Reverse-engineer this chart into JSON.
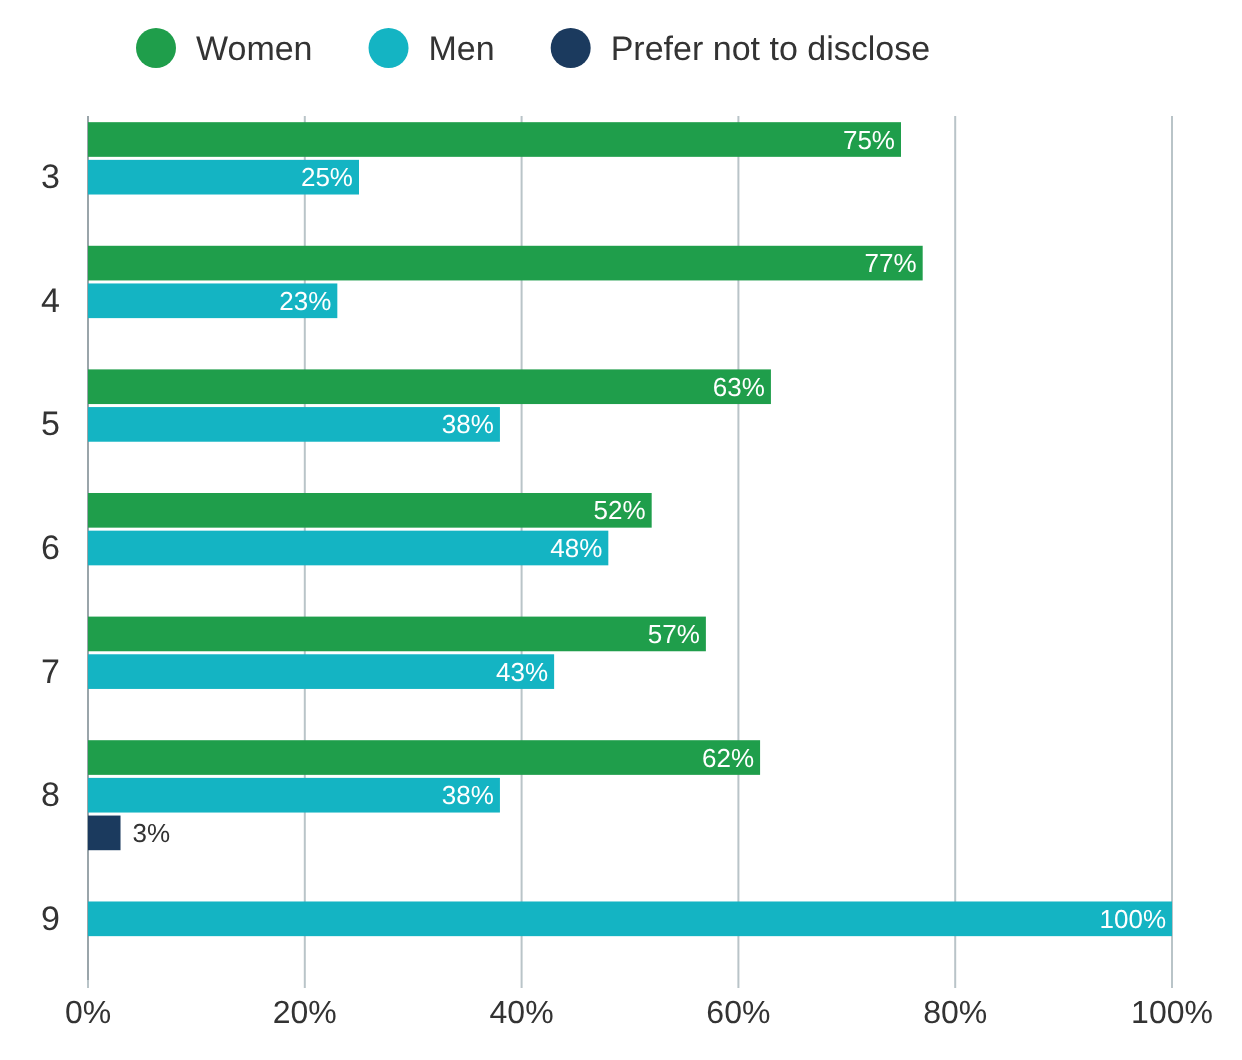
{
  "chart_data": {
    "type": "bar",
    "orientation": "horizontal",
    "categories": [
      "3",
      "4",
      "5",
      "6",
      "7",
      "8",
      "9"
    ],
    "series": [
      {
        "name": "Women",
        "color": "#1f9e4b",
        "values": [
          75,
          77,
          63,
          52,
          57,
          62,
          null
        ],
        "value_labels": [
          "75%",
          "77%",
          "63%",
          "52%",
          "57%",
          "62%",
          null
        ]
      },
      {
        "name": "Men",
        "color": "#14b4c3",
        "values": [
          25,
          23,
          38,
          48,
          43,
          38,
          100
        ],
        "value_labels": [
          "25%",
          "23%",
          "38%",
          "48%",
          "43%",
          "38%",
          "100%"
        ]
      },
      {
        "name": "Prefer not to disclose",
        "color": "#1b3a5e",
        "values": [
          null,
          null,
          null,
          null,
          null,
          3,
          null
        ],
        "value_labels": [
          null,
          null,
          null,
          null,
          null,
          "3%",
          null
        ]
      }
    ],
    "xlim": [
      0,
      100
    ],
    "xticks": [
      {
        "value": 0,
        "label": "0%"
      },
      {
        "value": 20,
        "label": "20%"
      },
      {
        "value": 40,
        "label": "40%"
      },
      {
        "value": 60,
        "label": "60%"
      },
      {
        "value": 80,
        "label": "80%"
      },
      {
        "value": 100,
        "label": "100%"
      }
    ],
    "grid": "x",
    "legend": "top left"
  }
}
